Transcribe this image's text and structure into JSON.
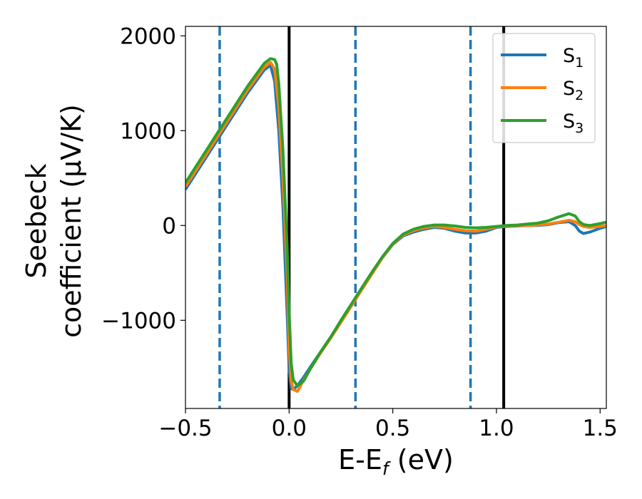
{
  "chart_data": {
    "type": "line",
    "xlabel": "E-E",
    "xlabel_sub": "f",
    "xlabel_unit": " (eV)",
    "ylabel_line1": "Seebeck",
    "ylabel_line2": "coefficient  (μV/K)",
    "xlim": [
      -0.5,
      1.53
    ],
    "ylim": [
      -1930,
      2100
    ],
    "xticks": [
      -0.5,
      0.0,
      0.5,
      1.0,
      1.5
    ],
    "xtick_labels": [
      "−0.5",
      "0.0",
      "0.5",
      "1.0",
      "1.5"
    ],
    "yticks": [
      -1000,
      0,
      1000,
      2000
    ],
    "ytick_labels": [
      "−1000",
      "0",
      "1000",
      "2000"
    ],
    "legend_position": "top-right",
    "vlines_solid": [
      0.0,
      1.035
    ],
    "vlines_dashed": [
      -0.335,
      0.32,
      0.875
    ],
    "vline_solid_color": "#000000",
    "vline_dashed_color": "#1f77b4",
    "series": [
      {
        "name": "S",
        "sub": "1",
        "color": "#1f77b4",
        "x": [
          -0.5,
          -0.4,
          -0.3,
          -0.2,
          -0.12,
          -0.09,
          -0.07,
          -0.05,
          -0.03,
          -0.01,
          0.0,
          0.01,
          0.02,
          0.04,
          0.07,
          0.1,
          0.15,
          0.2,
          0.25,
          0.3,
          0.35,
          0.4,
          0.45,
          0.5,
          0.55,
          0.6,
          0.65,
          0.7,
          0.75,
          0.8,
          0.85,
          0.9,
          0.95,
          1.0,
          1.05,
          1.1,
          1.15,
          1.2,
          1.25,
          1.3,
          1.35,
          1.38,
          1.4,
          1.42,
          1.45,
          1.5,
          1.53
        ],
        "y": [
          380,
          720,
          1060,
          1400,
          1640,
          1690,
          1520,
          1000,
          200,
          -900,
          -1520,
          -1720,
          -1730,
          -1690,
          -1600,
          -1500,
          -1340,
          -1180,
          -1010,
          -840,
          -670,
          -500,
          -340,
          -200,
          -110,
          -70,
          -40,
          -20,
          -30,
          -60,
          -80,
          -80,
          -60,
          -20,
          -10,
          -5,
          0,
          0,
          10,
          30,
          40,
          0,
          -60,
          -85,
          -70,
          -30,
          -10
        ]
      },
      {
        "name": "S",
        "sub": "2",
        "color": "#ff7f0e",
        "x": [
          -0.5,
          -0.4,
          -0.3,
          -0.2,
          -0.12,
          -0.09,
          -0.07,
          -0.05,
          -0.03,
          -0.01,
          0.0,
          0.01,
          0.02,
          0.04,
          0.07,
          0.1,
          0.15,
          0.2,
          0.25,
          0.3,
          0.35,
          0.4,
          0.45,
          0.5,
          0.55,
          0.6,
          0.65,
          0.7,
          0.75,
          0.8,
          0.85,
          0.9,
          0.95,
          1.0,
          1.05,
          1.1,
          1.15,
          1.2,
          1.25,
          1.3,
          1.35,
          1.38,
          1.4,
          1.42,
          1.45,
          1.5,
          1.53
        ],
        "y": [
          410,
          750,
          1090,
          1430,
          1670,
          1720,
          1650,
          1250,
          500,
          -500,
          -1300,
          -1640,
          -1730,
          -1750,
          -1630,
          -1520,
          -1350,
          -1190,
          -1020,
          -850,
          -680,
          -510,
          -340,
          -195,
          -100,
          -55,
          -25,
          -10,
          -20,
          -40,
          -55,
          -60,
          -40,
          -15,
          -5,
          0,
          0,
          5,
          15,
          35,
          55,
          40,
          10,
          -10,
          -20,
          -10,
          0
        ]
      },
      {
        "name": "S",
        "sub": "3",
        "color": "#2ca02c",
        "x": [
          -0.5,
          -0.4,
          -0.3,
          -0.2,
          -0.12,
          -0.09,
          -0.07,
          -0.06,
          -0.05,
          -0.03,
          -0.01,
          0.0,
          0.01,
          0.02,
          0.04,
          0.07,
          0.1,
          0.15,
          0.2,
          0.25,
          0.3,
          0.35,
          0.4,
          0.45,
          0.5,
          0.55,
          0.6,
          0.65,
          0.7,
          0.75,
          0.8,
          0.85,
          0.9,
          0.95,
          1.0,
          1.05,
          1.1,
          1.15,
          1.2,
          1.25,
          1.3,
          1.35,
          1.38,
          1.4,
          1.42,
          1.45,
          1.5,
          1.53
        ],
        "y": [
          450,
          790,
          1130,
          1470,
          1710,
          1760,
          1750,
          1700,
          1500,
          800,
          -200,
          -900,
          -1450,
          -1630,
          -1690,
          -1640,
          -1520,
          -1340,
          -1180,
          -1000,
          -830,
          -660,
          -490,
          -330,
          -190,
          -90,
          -40,
          -10,
          5,
          5,
          -5,
          -20,
          -25,
          -20,
          -10,
          0,
          5,
          15,
          25,
          50,
          90,
          125,
          100,
          40,
          10,
          0,
          20,
          35
        ]
      }
    ]
  }
}
